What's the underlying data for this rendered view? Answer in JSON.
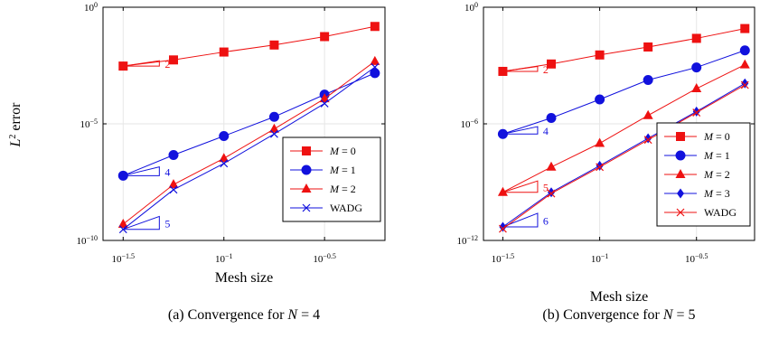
{
  "figure": {
    "ylabel_base": "L",
    "ylabel_sup": "2",
    "ylabel_rest": " error"
  },
  "chart_data": [
    {
      "type": "line",
      "caption_prefix": "(a) Convergence for ",
      "caption_var": "N",
      "caption_eq": " = 4",
      "xlabel": "Mesh size",
      "ylabel": "L2 error",
      "xscale": "log",
      "yscale": "log",
      "xlim": [
        0.0251,
        0.631
      ],
      "ylim": [
        1e-10,
        1
      ],
      "x_ticks": [
        {
          "value": 0.0316,
          "base": "10",
          "exp": "−1.5"
        },
        {
          "value": 0.1,
          "base": "10",
          "exp": "−1"
        },
        {
          "value": 0.3162,
          "base": "10",
          "exp": "−0.5"
        }
      ],
      "y_ticks": [
        {
          "value": 1e-10,
          "base": "10",
          "exp": "−10"
        },
        {
          "value": 1e-05,
          "base": "10",
          "exp": "−5"
        },
        {
          "value": 1,
          "base": "10",
          "exp": "0"
        }
      ],
      "x": [
        0.0316,
        0.0562,
        0.1,
        0.1778,
        0.3162,
        0.5623
      ],
      "grid": true,
      "legend": "bottom-right",
      "series": [
        {
          "name_var": "M",
          "name_eq": " = 0",
          "color": "#ee1111",
          "marker": "square",
          "values": [
            0.003,
            0.0055,
            0.012,
            0.024,
            0.055,
            0.15
          ]
        },
        {
          "name_var": "M",
          "name_eq": " = 1",
          "color": "#1111dd",
          "marker": "circle",
          "values": [
            6e-08,
            4.6e-07,
            3e-06,
            2e-05,
            0.00018,
            0.0015
          ]
        },
        {
          "name_var": "M",
          "name_eq": " = 2",
          "color": "#ee1111",
          "marker": "triangle",
          "values": [
            5e-10,
            2.5e-08,
            3.3e-07,
            6e-06,
            0.00012,
            0.0048
          ]
        },
        {
          "name": "WADG",
          "color": "#1111dd",
          "marker": "x",
          "values": [
            3e-10,
            1.5e-08,
            2e-07,
            3.7e-06,
            7.5e-05,
            0.0027
          ]
        }
      ],
      "slope_triangles": [
        {
          "label": "2",
          "color": "#ee1111",
          "x": 0.0316,
          "y": 0.003,
          "dx": 0.0162,
          "dy": 0.0021
        },
        {
          "label": "4",
          "color": "#1111dd",
          "x": 0.0316,
          "y": 6e-08,
          "dx": 0.0162,
          "dy": 8.3e-08
        },
        {
          "label": "5",
          "color": "#1111dd",
          "x": 0.0316,
          "y": 3e-10,
          "dx": 0.0162,
          "dy": 7.7e-10
        }
      ]
    },
    {
      "type": "line",
      "caption_prefix": "(b) Convergence for ",
      "caption_var": "N",
      "caption_eq": " = 5",
      "xlabel": "Mesh size",
      "ylabel": "L2 error",
      "xscale": "log",
      "yscale": "log",
      "xlim": [
        0.0251,
        0.631
      ],
      "ylim": [
        1e-12,
        1
      ],
      "x_ticks": [
        {
          "value": 0.0316,
          "base": "10",
          "exp": "−1.5"
        },
        {
          "value": 0.1,
          "base": "10",
          "exp": "−1"
        },
        {
          "value": 0.3162,
          "base": "10",
          "exp": "−0.5"
        }
      ],
      "y_ticks": [
        {
          "value": 1e-12,
          "base": "10",
          "exp": "−12"
        },
        {
          "value": 1e-06,
          "base": "10",
          "exp": "−6"
        },
        {
          "value": 1,
          "base": "10",
          "exp": "0"
        }
      ],
      "x": [
        0.0316,
        0.0562,
        0.1,
        0.1778,
        0.3162,
        0.5623
      ],
      "grid": true,
      "legend": "bottom-right",
      "series": [
        {
          "name_var": "M",
          "name_eq": " = 0",
          "color": "#ee1111",
          "marker": "square",
          "values": [
            0.0005,
            0.0012,
            0.0035,
            0.009,
            0.025,
            0.08
          ]
        },
        {
          "name_var": "M",
          "name_eq": " = 1",
          "color": "#1111dd",
          "marker": "circle",
          "values": [
            3e-07,
            2e-06,
            1.8e-05,
            0.00018,
            0.0008,
            0.006
          ]
        },
        {
          "name_var": "M",
          "name_eq": " = 2",
          "color": "#ee1111",
          "marker": "triangle",
          "values": [
            3e-10,
            6e-09,
            1e-07,
            2.7e-06,
            6.5e-05,
            0.0011
          ]
        },
        {
          "name_var": "M",
          "name_eq": " = 3",
          "color": "#1111dd",
          "marker": "diamond",
          "values": [
            5e-12,
            3e-10,
            7e-09,
            1.8e-07,
            4.3e-06,
            0.00012
          ]
        },
        {
          "name": "WADG",
          "color": "#ee1111",
          "marker": "x",
          "values": [
            4e-12,
            2.6e-10,
            6e-09,
            1.5e-07,
            3.8e-06,
            0.0001
          ]
        }
      ],
      "slope_triangles": [
        {
          "label": "2",
          "color": "#ee1111",
          "x": 0.0316,
          "y": 0.0005,
          "dx": 0.0162,
          "dy": 0.0004
        },
        {
          "label": "4",
          "color": "#1111dd",
          "x": 0.0316,
          "y": 3e-07,
          "dx": 0.0162,
          "dy": 4.2e-07
        },
        {
          "label": "5",
          "color": "#ee1111",
          "x": 0.0316,
          "y": 3e-10,
          "dx": 0.0162,
          "dy": 8.5e-10
        },
        {
          "label": "6",
          "color": "#1111dd",
          "x": 0.0316,
          "y": 5e-12,
          "dx": 0.0162,
          "dy": 2e-11
        }
      ]
    }
  ]
}
